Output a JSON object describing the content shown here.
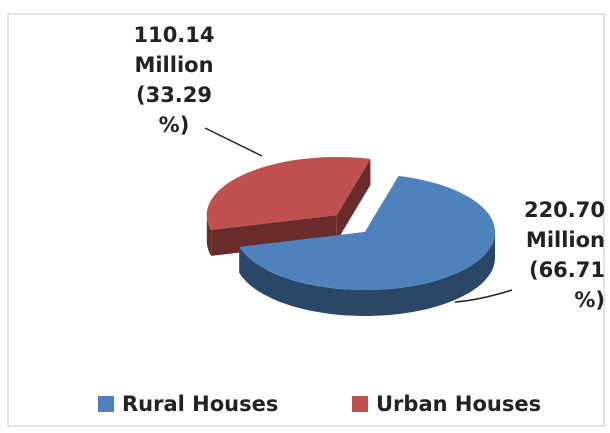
{
  "chart_data": {
    "type": "pie3d",
    "categories": [
      "Rural Houses",
      "Urban Houses"
    ],
    "values": [
      220.7,
      110.14
    ],
    "value_labels": [
      "220.70 Million (66.71 %)",
      "110.14 Million (33.29 %)"
    ],
    "colors": [
      "#4f81bd",
      "#c0504d"
    ],
    "exploded": [
      false,
      true
    ],
    "legend": "bottom"
  }
}
